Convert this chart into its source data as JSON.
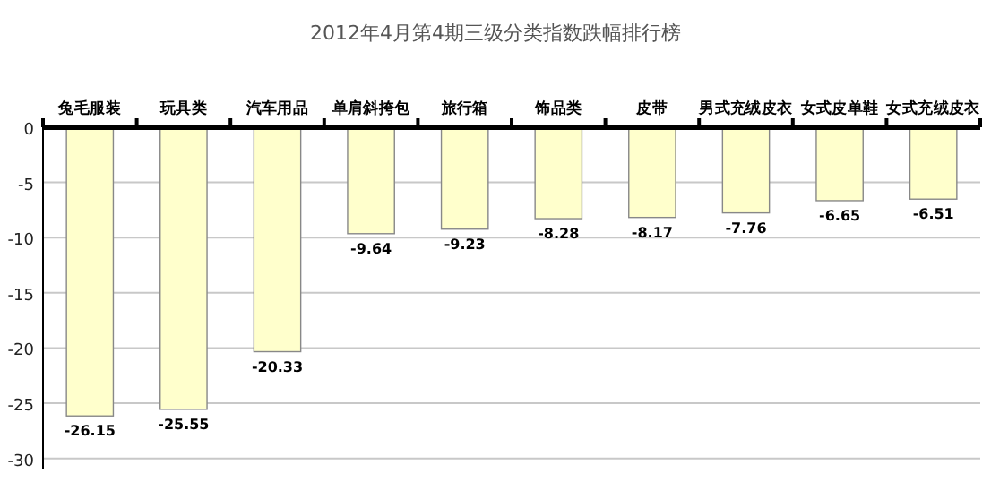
{
  "chart_data": {
    "type": "bar",
    "title": "2012年4月第4期三级分类指数跌幅排行榜",
    "categories": [
      "兔毛服装",
      "玩具类",
      "汽车用品",
      "单肩斜挎包",
      "旅行箱",
      "饰品类",
      "皮带",
      "男式充绒皮衣",
      "女式皮单鞋",
      "女式充绒皮衣"
    ],
    "values": [
      -26.15,
      -25.55,
      -20.33,
      -9.64,
      -9.23,
      -8.28,
      -8.17,
      -7.76,
      -6.65,
      -6.51
    ],
    "color": "#ffffcc",
    "ylim": [
      -31,
      0
    ],
    "yticks": [
      0,
      -5,
      -10,
      -15,
      -20,
      -25,
      -30
    ],
    "grid": "y",
    "data_labels": true
  }
}
